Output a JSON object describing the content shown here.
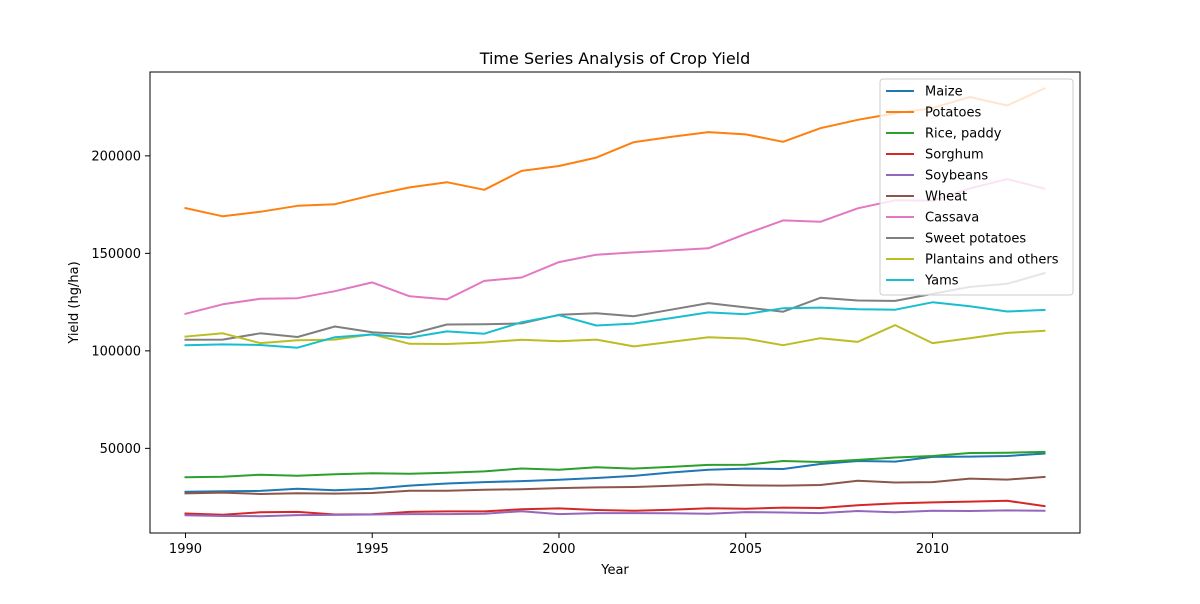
{
  "chart_data": {
    "type": "line",
    "title": "Time Series Analysis of Crop Yield",
    "xlabel": "Year",
    "ylabel": "Yield (hg/ha)",
    "x": [
      1990,
      1991,
      1992,
      1993,
      1994,
      1995,
      1996,
      1997,
      1998,
      1999,
      2000,
      2001,
      2002,
      2003,
      2004,
      2005,
      2006,
      2007,
      2008,
      2009,
      2010,
      2011,
      2012,
      2013
    ],
    "xlim": [
      1989.05,
      2013.95
    ],
    "ylim": [
      6600,
      243000
    ],
    "x_ticks": [
      1990,
      1995,
      2000,
      2005,
      2010
    ],
    "y_ticks": [
      50000,
      100000,
      150000,
      200000
    ],
    "grid": false,
    "legend_position": "top-right",
    "series": [
      {
        "name": "Maize",
        "color": "#1f77b4",
        "values": [
          27800,
          28000,
          28200,
          29300,
          28500,
          29300,
          30900,
          32000,
          32700,
          33200,
          33900,
          34800,
          35900,
          37600,
          39000,
          39600,
          39400,
          42000,
          43500,
          43200,
          45600,
          45800,
          46100,
          47300
        ]
      },
      {
        "name": "Potatoes",
        "color": "#ff7f0e",
        "values": [
          173200,
          169000,
          171300,
          174400,
          175200,
          179800,
          183800,
          186500,
          182600,
          192300,
          194800,
          199100,
          207000,
          209700,
          212200,
          211000,
          207200,
          214200,
          218500,
          221800,
          224500,
          230200,
          225800,
          234600
        ]
      },
      {
        "name": "Rice, paddy",
        "color": "#2ca02c",
        "values": [
          35200,
          35400,
          36500,
          36000,
          36700,
          37200,
          37000,
          37500,
          38200,
          39700,
          39000,
          40300,
          39600,
          40500,
          41500,
          41600,
          43500,
          43000,
          44100,
          45300,
          46100,
          47600,
          47800,
          48200
        ]
      },
      {
        "name": "Sorghum",
        "color": "#d62728",
        "values": [
          16600,
          16000,
          17200,
          17400,
          16100,
          16200,
          17400,
          17700,
          17700,
          18800,
          19200,
          18400,
          18000,
          18500,
          19300,
          19000,
          19600,
          19400,
          20800,
          21800,
          22300,
          22700,
          23100,
          20400
        ]
      },
      {
        "name": "Soybeans",
        "color": "#9467bd",
        "values": [
          15700,
          15300,
          15200,
          15800,
          15900,
          16100,
          16300,
          16300,
          16500,
          17800,
          16300,
          16800,
          16800,
          16700,
          16500,
          17300,
          17100,
          16800,
          17900,
          17200,
          18000,
          17900,
          18200,
          18000
        ]
      },
      {
        "name": "Wheat",
        "color": "#8c564b",
        "values": [
          26900,
          27300,
          26600,
          27000,
          26800,
          27100,
          28300,
          28300,
          28800,
          29000,
          29600,
          30000,
          30200,
          30800,
          31500,
          31000,
          30900,
          31200,
          33400,
          32500,
          32700,
          34500,
          34000,
          35300
        ]
      },
      {
        "name": "Cassava",
        "color": "#e377c2",
        "values": [
          119000,
          123900,
          126700,
          127000,
          130600,
          135100,
          128000,
          126400,
          135900,
          137600,
          145500,
          149300,
          150500,
          151500,
          152600,
          160000,
          166900,
          166200,
          173100,
          177200,
          177000,
          183300,
          188100,
          183200
        ]
      },
      {
        "name": "Sweet potatoes",
        "color": "#7f7f7f",
        "values": [
          105700,
          105800,
          109000,
          107100,
          112500,
          109500,
          108500,
          113500,
          113600,
          114100,
          118500,
          119300,
          117800,
          121100,
          124500,
          122300,
          120100,
          127200,
          125800,
          125600,
          129200,
          132800,
          134400,
          139900
        ]
      },
      {
        "name": "Plantains and others",
        "color": "#bcbd22",
        "values": [
          107300,
          109000,
          104000,
          105400,
          105800,
          108500,
          103600,
          103500,
          104300,
          105700,
          104900,
          105800,
          102300,
          104600,
          107000,
          106300,
          102900,
          106500,
          104600,
          113200,
          104000,
          106500,
          109200,
          110300
        ]
      },
      {
        "name": "Yams",
        "color": "#17becf",
        "values": [
          102900,
          103300,
          103000,
          101600,
          107000,
          108400,
          106800,
          110000,
          108800,
          114700,
          118300,
          113000,
          114000,
          116800,
          119700,
          118800,
          121900,
          122200,
          121300,
          121100,
          124900,
          122900,
          120200,
          121000
        ]
      }
    ]
  }
}
